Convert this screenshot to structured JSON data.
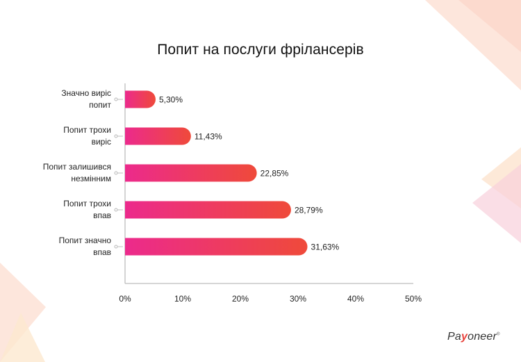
{
  "chart_data": {
    "type": "bar",
    "orientation": "horizontal",
    "title": "Попит на послуги фрілансерів",
    "categories": [
      [
        "Значно виріс",
        "попит"
      ],
      [
        "Попит трохи",
        "виріс"
      ],
      [
        "Попит залишився",
        "незмінним"
      ],
      [
        "Попит трохи",
        "впав"
      ],
      [
        "Попит значно",
        "впав"
      ]
    ],
    "values": [
      5.3,
      11.43,
      22.85,
      28.79,
      31.63
    ],
    "data_labels": [
      "5,30%",
      "11,43%",
      "22,85%",
      "28,79%",
      "31,63%"
    ],
    "xlim": [
      0,
      50
    ],
    "x_ticks": [
      "0%",
      "10%",
      "20%",
      "30%",
      "40%",
      "50%"
    ],
    "grid": false,
    "colors": {
      "bar_start": "#ec2a8c",
      "bar_end": "#ef4a3a",
      "axis": "#bdbdbd"
    }
  },
  "brand": {
    "logo_pre": "Pa",
    "logo_mark": "y",
    "logo_post": "oneer",
    "logo_tm": "®"
  }
}
